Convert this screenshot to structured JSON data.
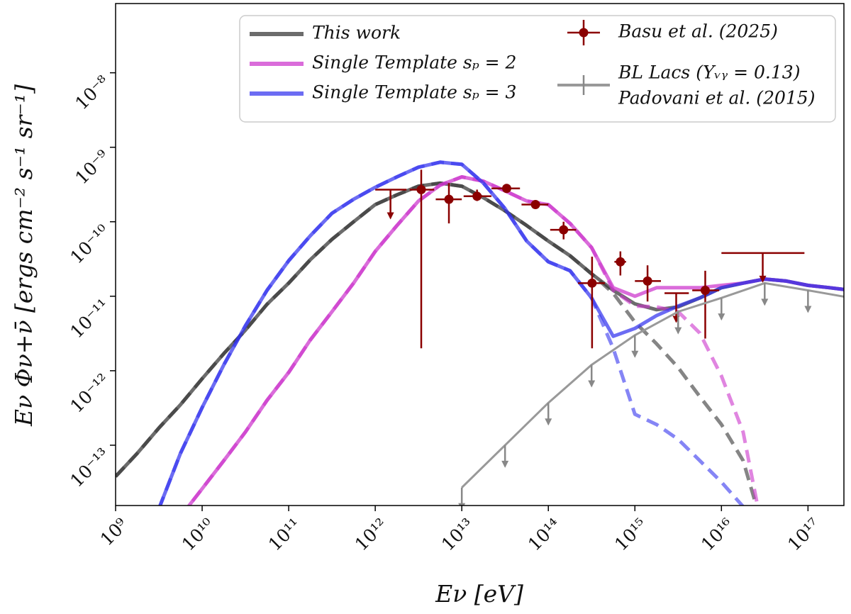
{
  "chart_data": {
    "type": "line",
    "xlabel": "Eν [eV]",
    "ylabel": "Eν Φν+ν̄ [ergs cm⁻² s⁻¹ sr⁻¹]",
    "xscale": "log",
    "yscale": "log",
    "xlim": [
      1000000000.0,
      2.6e+17
    ],
    "ylim": [
      1.55e-14,
      8.5e-08
    ],
    "xticks": [
      {
        "value": 1000000000.0,
        "label": "10⁹"
      },
      {
        "value": 10000000000.0,
        "label": "10¹⁰"
      },
      {
        "value": 100000000000.0,
        "label": "10¹¹"
      },
      {
        "value": 1000000000000.0,
        "label": "10¹²"
      },
      {
        "value": 10000000000000.0,
        "label": "10¹³"
      },
      {
        "value": 100000000000000.0,
        "label": "10¹⁴"
      },
      {
        "value": 1000000000000000.0,
        "label": "10¹⁵"
      },
      {
        "value": 1e+16,
        "label": "10¹⁶"
      },
      {
        "value": 1e+17,
        "label": "10¹⁷"
      }
    ],
    "yticks": [
      {
        "value": 1e-13,
        "label": "10⁻¹³"
      },
      {
        "value": 1e-12,
        "label": "10⁻¹²"
      },
      {
        "value": 1e-11,
        "label": "10⁻¹¹"
      },
      {
        "value": 1e-10,
        "label": "10⁻¹⁰"
      },
      {
        "value": 1e-09,
        "label": "10⁻⁹"
      },
      {
        "value": 1e-08,
        "label": "10⁻⁸"
      }
    ],
    "legend": "upper right",
    "x": [
      1000000000.0,
      1780000000.0,
      3160000000.0,
      5620000000.0,
      10000000000.0,
      17800000000.0,
      31600000000.0,
      56200000000.0,
      100000000000.0,
      178000000000.0,
      316000000000.0,
      562000000000.0,
      1000000000000.0,
      1780000000000.0,
      3160000000000.0,
      5620000000000.0,
      10000000000000.0,
      17800000000000.0,
      31600000000000.0,
      56200000000000.0,
      100000000000000.0,
      178000000000000.0,
      316000000000000.0,
      562000000000000.0,
      1000000000000000.0,
      1780000000000000.0,
      3160000000000000.0,
      5620000000000000.0,
      1e+16,
      1.78e+16,
      3.16e+16,
      5.62e+16,
      1e+17,
      1.78e+17,
      3.16e+17
    ],
    "series": [
      {
        "name": "This work",
        "color": "#333333",
        "style": "solid",
        "values": [
          3.8e-14,
          7.8e-14,
          1.7e-13,
          3.5e-13,
          7.8e-13,
          1.7e-12,
          3.5e-12,
          7.8e-12,
          1.5e-11,
          3.1e-11,
          5.8e-11,
          1e-10,
          1.7e-10,
          2.3e-10,
          3e-10,
          3.3e-10,
          3e-10,
          2.1e-10,
          1.4e-10,
          8.9e-11,
          5.5e-11,
          3.5e-11,
          2e-11,
          1.2e-11,
          7.9e-12,
          6.6e-12,
          7.2e-12,
          9.5e-12,
          1.3e-11,
          1.5e-11,
          1.7e-11,
          1.6e-11,
          1.4e-11,
          1.3e-11,
          1.2e-11
        ]
      },
      {
        "color": "#333333",
        "style": "dashed",
        "values": [
          3.8e-14,
          7.8e-14,
          1.7e-13,
          3.5e-13,
          7.8e-13,
          1.7e-12,
          3.5e-12,
          7.8e-12,
          1.5e-11,
          3.1e-11,
          5.8e-11,
          1e-10,
          1.7e-10,
          2.3e-10,
          3e-10,
          3.3e-10,
          3e-10,
          2.1e-10,
          1.4e-10,
          8.9e-11,
          5.5e-11,
          3.5e-11,
          2e-11,
          1.1e-11,
          4.5e-12,
          2.3e-12,
          1.1e-12,
          4.5e-13,
          1.9e-13,
          6.2e-14,
          6.3e-15,
          null,
          null,
          null,
          null
        ]
      },
      {
        "name": "Single Template sₚ = 2",
        "color": "#cc33cc",
        "style": "solid",
        "values": [
          null,
          null,
          null,
          1.1e-14,
          2.6e-14,
          6.2e-14,
          1.5e-13,
          4e-13,
          9.5e-13,
          2.6e-12,
          6.2e-12,
          1.5e-11,
          4e-11,
          8.9e-11,
          1.9e-10,
          3.1e-10,
          4e-10,
          3.5e-10,
          2.6e-10,
          1.9e-10,
          1.7e-10,
          9.5e-11,
          4.5e-11,
          1.3e-11,
          1e-11,
          1.3e-11,
          1.3e-11,
          1.3e-11,
          1.4e-11,
          1.5e-11,
          1.7e-11,
          1.6e-11,
          1.4e-11,
          1.3e-11,
          1.2e-11
        ]
      },
      {
        "color": "#cc33cc",
        "style": "dashed",
        "values": [
          null,
          null,
          null,
          1.1e-14,
          2.6e-14,
          6.2e-14,
          1.5e-13,
          4e-13,
          9.5e-13,
          2.6e-12,
          6.2e-12,
          1.5e-11,
          4e-11,
          8.9e-11,
          1.9e-10,
          3.1e-10,
          4e-10,
          3.5e-10,
          2.6e-10,
          1.9e-10,
          1.7e-10,
          9.5e-11,
          4.5e-11,
          1.2e-11,
          7.4e-12,
          7.2e-12,
          6.2e-12,
          3.2e-12,
          8.5e-13,
          1.5e-13,
          5e-15,
          null,
          null,
          null,
          null
        ]
      },
      {
        "name": "Single Template sₚ = 3",
        "color": "#3333ee",
        "style": "solid",
        "values": [
          null,
          null,
          1.4e-14,
          7.8e-14,
          3.2e-13,
          1.2e-12,
          4e-12,
          1.2e-11,
          3e-11,
          6.5e-11,
          1.3e-10,
          2e-10,
          2.9e-10,
          4e-10,
          5.4e-10,
          6.3e-10,
          5.9e-10,
          3.3e-10,
          1.5e-10,
          5.5e-11,
          2.9e-11,
          2.2e-11,
          9.5e-12,
          2.9e-12,
          3.7e-12,
          5.5e-12,
          7.4e-12,
          9.5e-12,
          1.3e-11,
          1.5e-11,
          1.7e-11,
          1.6e-11,
          1.4e-11,
          1.3e-11,
          1.2e-11
        ]
      },
      {
        "color": "#3333ee",
        "style": "dashed",
        "values": [
          null,
          null,
          1.4e-14,
          7.8e-14,
          3.2e-13,
          1.2e-12,
          4e-12,
          1.2e-11,
          3e-11,
          6.5e-11,
          1.3e-10,
          2e-10,
          2.9e-10,
          4e-10,
          5.4e-10,
          6.3e-10,
          5.9e-10,
          3.3e-10,
          1.5e-10,
          5.5e-11,
          2.9e-11,
          2.2e-11,
          9.5e-12,
          2e-12,
          2.6e-13,
          1.9e-13,
          1.2e-13,
          6.2e-14,
          3.2e-14,
          1.5e-14,
          5e-15,
          null,
          null,
          null,
          null
        ]
      },
      {
        "name": "Basu et al. (2025)",
        "color": "#8b0000",
        "style": "points",
        "x": [
          1500000000000.0,
          3400000000000.0,
          7100000000000.0,
          15000000000000.0,
          33000000000000.0,
          71000000000000.0,
          150000000000000.0,
          320000000000000.0,
          680000000000000.0,
          1400000000000000.0,
          3000000000000000.0,
          6500000000000000.0,
          3e+16
        ],
        "xlow": [
          1000000000000.0,
          2500000000000.0,
          5000000000000.0,
          10500000000000.0,
          22000000000000.0,
          49000000000000.0,
          105000000000000.0,
          220000000000000.0,
          580000000000000.0,
          1000000000000000.0,
          2200000000000000.0,
          4600000000000000.0,
          1e+16
        ],
        "xhigh": [
          2300000000000.0,
          4800000000000.0,
          10000000000000.0,
          22000000000000.0,
          47000000000000.0,
          100000000000000.0,
          210000000000000.0,
          450000000000000.0,
          790000000000000.0,
          2000000000000000.0,
          4200000000000000.0,
          9400000000000000.0,
          9.1e+16
        ],
        "values": [
          2.7e-10,
          2.7e-10,
          2e-10,
          2.2e-10,
          2.8e-10,
          1.7e-10,
          7.8e-11,
          1.5e-11,
          2.9e-11,
          1.6e-11,
          1.1e-11,
          1.2e-11,
          3.8e-11
        ],
        "ylow": [
          null,
          2e-12,
          9.5e-11,
          1.9e-10,
          2.5e-10,
          1.5e-10,
          5.8e-11,
          2e-12,
          1.9e-11,
          8.5e-12,
          null,
          2.7e-12,
          null
        ],
        "yhigh": [
          null,
          5e-10,
          3.3e-10,
          2.7e-10,
          3.1e-10,
          1.9e-10,
          1e-10,
          3.4e-11,
          4e-11,
          2.6e-11,
          null,
          2.2e-11,
          null
        ],
        "upper_limit": [
          true,
          false,
          false,
          false,
          false,
          false,
          false,
          false,
          false,
          false,
          true,
          false,
          true
        ]
      },
      {
        "name": "BL Lacs (Yᵥᵧ = 0.13)",
        "reference": "Padovani et al. (2015)",
        "color": "#999999",
        "style": "limits",
        "x": [
          10000000000000.0,
          31600000000000.0,
          100000000000000.0,
          316000000000000.0,
          1000000000000000.0,
          3160000000000000.0,
          1e+16,
          3.16e+16,
          1e+17,
          3.16e+17
        ],
        "values": [
          2.7e-14,
          1e-13,
          3.7e-13,
          1.2e-12,
          3e-12,
          6.2e-12,
          9.5e-12,
          1.5e-11,
          1.2e-11,
          9.5e-12
        ]
      }
    ]
  }
}
